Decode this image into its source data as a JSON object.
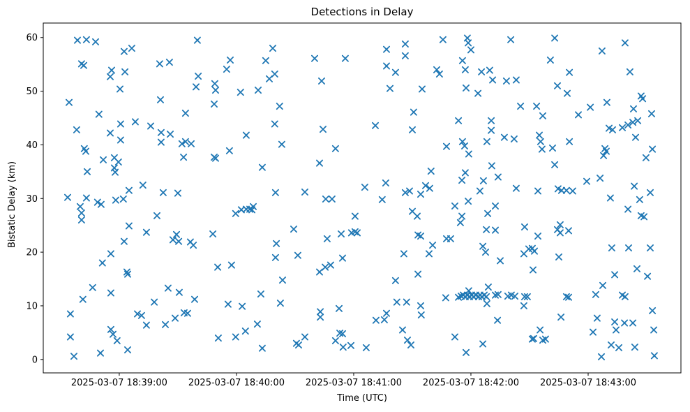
{
  "figure": {
    "title": "Detections in Delay",
    "xlabel": "Time (UTC)",
    "ylabel": "Bistatic Delay (km)"
  },
  "colors": {
    "marker": "#1f77b4",
    "axis": "#000000",
    "background": "#ffffff"
  },
  "chart_data": {
    "type": "scatter",
    "title": "Detections in Delay",
    "xlabel": "Time (UTC)",
    "ylabel": "Bistatic Delay (km)",
    "marker_style": "x",
    "legend": null,
    "grid": false,
    "x_axis": {
      "kind": "time",
      "tick_seconds": [
        0,
        60,
        120,
        180,
        240
      ],
      "tick_labels": [
        "2025-03-07 18:39:00",
        "2025-03-07 18:40:00",
        "2025-03-07 18:41:00",
        "2025-03-07 18:42:00",
        "2025-03-07 18:43:00"
      ],
      "range_seconds": [
        -38.9,
        287.5
      ]
    },
    "y_axis": {
      "ticks": [
        0,
        10,
        20,
        30,
        40,
        50,
        60
      ],
      "range": [
        -2.5,
        62.7
      ]
    },
    "points_units": "[seconds after 2025-03-07 18:39:00 UTC, bistatic delay km]",
    "points": [
      [
        -21.4,
        59.5
      ],
      [
        -16.8,
        59.6
      ],
      [
        -12.1,
        59.2
      ],
      [
        2.5,
        57.4
      ],
      [
        6.4,
        58.0
      ],
      [
        40.0,
        59.5
      ],
      [
        -19.3,
        55.1
      ],
      [
        -18.2,
        54.8
      ],
      [
        20.7,
        55.1
      ],
      [
        25.7,
        55.4
      ],
      [
        -3.9,
        53.9
      ],
      [
        2.9,
        53.6
      ],
      [
        -4.6,
        52.7
      ],
      [
        40.4,
        52.8
      ],
      [
        39.3,
        50.8
      ],
      [
        0.4,
        50.4
      ],
      [
        -25.7,
        47.9
      ],
      [
        21.1,
        48.4
      ],
      [
        33.9,
        45.9
      ],
      [
        -10.4,
        45.7
      ],
      [
        0.7,
        43.9
      ],
      [
        8.2,
        44.3
      ],
      [
        16.1,
        43.5
      ],
      [
        -21.8,
        42.8
      ],
      [
        -4.6,
        42.2
      ],
      [
        21.4,
        42.3
      ],
      [
        26.1,
        42.0
      ],
      [
        0.7,
        40.9
      ],
      [
        21.4,
        40.5
      ],
      [
        32.1,
        40.2
      ],
      [
        33.9,
        40.6
      ],
      [
        36.8,
        40.2
      ],
      [
        32.9,
        37.7
      ],
      [
        -17.9,
        39.3
      ],
      [
        -17.1,
        38.8
      ],
      [
        -8.2,
        37.2
      ],
      [
        -2.5,
        37.6
      ],
      [
        -0.4,
        36.8
      ],
      [
        -2.5,
        35.7
      ],
      [
        -2.1,
        34.9
      ],
      [
        -16.4,
        35.0
      ],
      [
        12.1,
        32.5
      ],
      [
        5.0,
        31.5
      ],
      [
        2.1,
        29.9
      ],
      [
        -16.8,
        30.1
      ],
      [
        -26.4,
        30.2
      ],
      [
        22.5,
        31.1
      ],
      [
        30.0,
        31.0
      ],
      [
        -11.1,
        29.3
      ],
      [
        -9.3,
        28.9
      ],
      [
        -1.8,
        29.7
      ],
      [
        -20.0,
        28.5
      ],
      [
        -19.3,
        27.3
      ],
      [
        -19.3,
        26.0
      ],
      [
        19.3,
        26.8
      ],
      [
        5.0,
        24.9
      ],
      [
        13.9,
        23.7
      ],
      [
        2.5,
        22.0
      ],
      [
        27.5,
        22.3
      ],
      [
        29.3,
        23.3
      ],
      [
        30.4,
        22.0
      ],
      [
        36.4,
        21.9
      ],
      [
        37.9,
        21.3
      ],
      [
        -4.3,
        19.7
      ],
      [
        -8.6,
        18.0
      ],
      [
        3.9,
        16.3
      ],
      [
        4.3,
        15.9
      ],
      [
        -13.6,
        13.4
      ],
      [
        -4.3,
        12.4
      ],
      [
        -18.6,
        11.2
      ],
      [
        25.0,
        13.3
      ],
      [
        30.7,
        12.5
      ],
      [
        38.6,
        11.2
      ],
      [
        17.9,
        10.7
      ],
      [
        -25.0,
        8.5
      ],
      [
        9.3,
        8.5
      ],
      [
        11.4,
        8.2
      ],
      [
        13.9,
        6.4
      ],
      [
        23.6,
        6.5
      ],
      [
        28.6,
        7.7
      ],
      [
        33.2,
        8.7
      ],
      [
        35.0,
        8.6
      ],
      [
        -25.0,
        4.2
      ],
      [
        -4.3,
        5.6
      ],
      [
        -3.2,
        4.7
      ],
      [
        -1.1,
        3.5
      ],
      [
        4.3,
        1.8
      ],
      [
        -9.6,
        1.2
      ],
      [
        -23.2,
        0.6
      ],
      [
        78.6,
        58.0
      ],
      [
        56.8,
        55.8
      ],
      [
        75.0,
        55.7
      ],
      [
        100.0,
        56.1
      ],
      [
        115.7,
        56.1
      ],
      [
        55.0,
        54.1
      ],
      [
        79.6,
        53.2
      ],
      [
        76.8,
        52.3
      ],
      [
        103.6,
        51.9
      ],
      [
        48.9,
        51.4
      ],
      [
        49.3,
        50.2
      ],
      [
        62.1,
        49.8
      ],
      [
        71.1,
        50.2
      ],
      [
        48.6,
        47.6
      ],
      [
        82.1,
        47.2
      ],
      [
        79.6,
        43.9
      ],
      [
        104.3,
        42.9
      ],
      [
        65.0,
        41.8
      ],
      [
        83.2,
        40.1
      ],
      [
        110.7,
        39.3
      ],
      [
        56.4,
        38.9
      ],
      [
        48.6,
        37.7
      ],
      [
        49.3,
        37.5
      ],
      [
        73.2,
        35.8
      ],
      [
        102.5,
        36.6
      ],
      [
        80.0,
        31.1
      ],
      [
        95.0,
        31.2
      ],
      [
        108.9,
        29.9
      ],
      [
        105.7,
        29.9
      ],
      [
        59.6,
        27.2
      ],
      [
        62.5,
        27.9
      ],
      [
        65.0,
        28.0
      ],
      [
        66.8,
        28.0
      ],
      [
        67.9,
        27.9
      ],
      [
        68.6,
        28.5
      ],
      [
        120.7,
        26.7
      ],
      [
        47.9,
        23.4
      ],
      [
        89.3,
        24.3
      ],
      [
        106.4,
        22.5
      ],
      [
        113.6,
        23.4
      ],
      [
        118.9,
        23.6
      ],
      [
        120.7,
        23.8
      ],
      [
        121.8,
        23.6
      ],
      [
        80.4,
        21.6
      ],
      [
        80.0,
        19.0
      ],
      [
        91.4,
        19.4
      ],
      [
        50.4,
        17.2
      ],
      [
        57.5,
        17.6
      ],
      [
        102.5,
        16.3
      ],
      [
        105.4,
        17.2
      ],
      [
        108.2,
        17.6
      ],
      [
        114.3,
        18.9
      ],
      [
        83.6,
        14.8
      ],
      [
        72.5,
        12.2
      ],
      [
        55.7,
        10.3
      ],
      [
        62.9,
        9.9
      ],
      [
        82.5,
        10.5
      ],
      [
        112.5,
        9.5
      ],
      [
        102.9,
        8.9
      ],
      [
        102.9,
        7.9
      ],
      [
        70.7,
        6.6
      ],
      [
        64.6,
        5.3
      ],
      [
        50.7,
        4.0
      ],
      [
        59.6,
        4.2
      ],
      [
        95.0,
        4.2
      ],
      [
        90.7,
        3.0
      ],
      [
        91.8,
        2.7
      ],
      [
        73.2,
        2.1
      ],
      [
        112.9,
        4.9
      ],
      [
        114.3,
        4.8
      ],
      [
        110.7,
        3.5
      ],
      [
        114.6,
        2.3
      ],
      [
        118.6,
        2.6
      ],
      [
        165.7,
        59.6
      ],
      [
        178.2,
        59.9
      ],
      [
        178.6,
        59.0
      ],
      [
        200.4,
        59.6
      ],
      [
        146.4,
        58.8
      ],
      [
        136.8,
        57.8
      ],
      [
        180.0,
        57.7
      ],
      [
        146.4,
        56.6
      ],
      [
        136.8,
        54.7
      ],
      [
        175.7,
        55.7
      ],
      [
        141.4,
        53.5
      ],
      [
        162.5,
        54.0
      ],
      [
        163.9,
        53.2
      ],
      [
        177.1,
        54.0
      ],
      [
        185.4,
        53.6
      ],
      [
        189.6,
        53.9
      ],
      [
        191.1,
        52.1
      ],
      [
        198.2,
        51.9
      ],
      [
        203.2,
        52.1
      ],
      [
        138.6,
        50.5
      ],
      [
        155.0,
        50.4
      ],
      [
        177.5,
        50.6
      ],
      [
        183.6,
        49.6
      ],
      [
        205.4,
        47.2
      ],
      [
        150.7,
        46.1
      ],
      [
        131.1,
        43.6
      ],
      [
        173.6,
        44.5
      ],
      [
        190.4,
        44.5
      ],
      [
        150.0,
        42.8
      ],
      [
        190.4,
        42.7
      ],
      [
        197.1,
        41.4
      ],
      [
        202.1,
        41.1
      ],
      [
        188.2,
        40.6
      ],
      [
        175.7,
        40.6
      ],
      [
        176.8,
        39.8
      ],
      [
        167.5,
        39.7
      ],
      [
        178.9,
        38.3
      ],
      [
        190.7,
        36.1
      ],
      [
        159.6,
        35.1
      ],
      [
        177.1,
        34.8
      ],
      [
        175.4,
        33.4
      ],
      [
        193.9,
        34.0
      ],
      [
        186.4,
        33.3
      ],
      [
        136.4,
        32.9
      ],
      [
        125.7,
        32.1
      ],
      [
        156.8,
        32.4
      ],
      [
        158.9,
        31.9
      ],
      [
        146.4,
        31.1
      ],
      [
        148.6,
        31.4
      ],
      [
        154.3,
        30.8
      ],
      [
        184.6,
        31.4
      ],
      [
        203.2,
        31.9
      ],
      [
        134.6,
        29.8
      ],
      [
        178.6,
        29.5
      ],
      [
        171.8,
        28.6
      ],
      [
        192.5,
        28.6
      ],
      [
        150.0,
        27.6
      ],
      [
        152.5,
        26.7
      ],
      [
        188.6,
        27.2
      ],
      [
        175.4,
        26.7
      ],
      [
        174.6,
        25.5
      ],
      [
        187.9,
        24.2
      ],
      [
        192.5,
        24.1
      ],
      [
        152.9,
        23.2
      ],
      [
        154.3,
        23.0
      ],
      [
        167.5,
        22.5
      ],
      [
        169.6,
        22.5
      ],
      [
        160.4,
        21.3
      ],
      [
        186.1,
        21.1
      ],
      [
        187.5,
        20.0
      ],
      [
        145.7,
        19.7
      ],
      [
        158.6,
        19.7
      ],
      [
        207.1,
        19.7
      ],
      [
        209.6,
        20.6
      ],
      [
        211.4,
        20.7
      ],
      [
        212.5,
        20.2
      ],
      [
        195.0,
        18.4
      ],
      [
        152.9,
        15.9
      ],
      [
        141.4,
        14.7
      ],
      [
        167.1,
        11.5
      ],
      [
        173.6,
        11.6
      ],
      [
        175.0,
        11.8
      ],
      [
        176.1,
        12.0
      ],
      [
        177.1,
        11.7
      ],
      [
        178.2,
        12.0
      ],
      [
        178.9,
        12.8
      ],
      [
        179.3,
        11.7
      ],
      [
        180.4,
        12.0
      ],
      [
        181.4,
        11.7
      ],
      [
        182.5,
        12.0
      ],
      [
        183.9,
        11.7
      ],
      [
        184.6,
        12.0
      ],
      [
        185.7,
        11.7
      ],
      [
        186.8,
        12.0
      ],
      [
        187.9,
        11.7
      ],
      [
        188.9,
        13.5
      ],
      [
        188.2,
        10.4
      ],
      [
        192.5,
        12.0
      ],
      [
        193.9,
        12.1
      ],
      [
        198.9,
        11.8
      ],
      [
        200.7,
        12.0
      ],
      [
        202.5,
        11.8
      ],
      [
        207.5,
        11.7
      ],
      [
        208.9,
        11.7
      ],
      [
        207.1,
        10.0
      ],
      [
        142.1,
        10.7
      ],
      [
        147.1,
        10.7
      ],
      [
        154.3,
        10.0
      ],
      [
        154.6,
        8.3
      ],
      [
        136.8,
        8.6
      ],
      [
        131.4,
        7.3
      ],
      [
        135.7,
        7.4
      ],
      [
        145.0,
        5.5
      ],
      [
        193.6,
        7.3
      ],
      [
        147.5,
        3.6
      ],
      [
        149.3,
        2.7
      ],
      [
        126.4,
        2.2
      ],
      [
        171.8,
        4.2
      ],
      [
        177.5,
        1.3
      ],
      [
        186.1,
        2.9
      ],
      [
        222.9,
        59.9
      ],
      [
        258.9,
        59.0
      ],
      [
        247.1,
        57.5
      ],
      [
        220.7,
        55.8
      ],
      [
        230.4,
        53.5
      ],
      [
        261.4,
        53.6
      ],
      [
        224.3,
        51.0
      ],
      [
        229.3,
        49.6
      ],
      [
        267.1,
        49.1
      ],
      [
        267.9,
        48.6
      ],
      [
        213.6,
        47.2
      ],
      [
        249.6,
        47.9
      ],
      [
        263.2,
        46.7
      ],
      [
        216.8,
        45.4
      ],
      [
        235.0,
        45.6
      ],
      [
        241.1,
        47.0
      ],
      [
        272.5,
        45.8
      ],
      [
        257.5,
        43.2
      ],
      [
        260.4,
        43.7
      ],
      [
        262.9,
        44.2
      ],
      [
        265.4,
        44.5
      ],
      [
        250.7,
        43.1
      ],
      [
        252.5,
        42.8
      ],
      [
        264.3,
        41.4
      ],
      [
        215.0,
        41.8
      ],
      [
        215.7,
        40.6
      ],
      [
        216.4,
        39.2
      ],
      [
        221.8,
        39.4
      ],
      [
        230.4,
        40.6
      ],
      [
        272.9,
        39.2
      ],
      [
        248.6,
        39.3
      ],
      [
        249.3,
        38.8
      ],
      [
        247.9,
        38.0
      ],
      [
        269.6,
        37.6
      ],
      [
        222.9,
        36.3
      ],
      [
        239.3,
        33.2
      ],
      [
        246.1,
        33.8
      ],
      [
        214.3,
        31.4
      ],
      [
        224.6,
        31.8
      ],
      [
        226.4,
        31.5
      ],
      [
        228.9,
        31.5
      ],
      [
        232.1,
        31.4
      ],
      [
        263.6,
        32.3
      ],
      [
        251.4,
        30.1
      ],
      [
        271.8,
        31.1
      ],
      [
        266.4,
        29.8
      ],
      [
        260.4,
        28.0
      ],
      [
        267.1,
        26.8
      ],
      [
        268.6,
        26.6
      ],
      [
        207.5,
        24.7
      ],
      [
        225.7,
        25.1
      ],
      [
        214.3,
        23.0
      ],
      [
        224.3,
        24.2
      ],
      [
        225.7,
        23.6
      ],
      [
        230.0,
        24.0
      ],
      [
        225.0,
        19.1
      ],
      [
        252.1,
        20.8
      ],
      [
        260.7,
        20.8
      ],
      [
        271.8,
        20.8
      ],
      [
        211.8,
        16.7
      ],
      [
        253.6,
        15.8
      ],
      [
        265.0,
        16.9
      ],
      [
        270.4,
        15.5
      ],
      [
        247.5,
        13.8
      ],
      [
        243.9,
        12.1
      ],
      [
        228.9,
        11.7
      ],
      [
        230.0,
        11.6
      ],
      [
        257.5,
        12.0
      ],
      [
        258.9,
        11.7
      ],
      [
        272.9,
        9.1
      ],
      [
        226.1,
        7.9
      ],
      [
        244.6,
        7.7
      ],
      [
        253.6,
        7.0
      ],
      [
        258.6,
        6.8
      ],
      [
        262.9,
        6.8
      ],
      [
        215.4,
        5.5
      ],
      [
        242.5,
        5.1
      ],
      [
        254.3,
        5.5
      ],
      [
        273.6,
        5.5
      ],
      [
        211.4,
        3.8
      ],
      [
        212.1,
        3.9
      ],
      [
        216.8,
        3.6
      ],
      [
        218.2,
        3.8
      ],
      [
        251.8,
        2.7
      ],
      [
        255.7,
        2.2
      ],
      [
        263.9,
        2.3
      ],
      [
        246.8,
        0.5
      ],
      [
        273.9,
        0.7
      ]
    ]
  }
}
